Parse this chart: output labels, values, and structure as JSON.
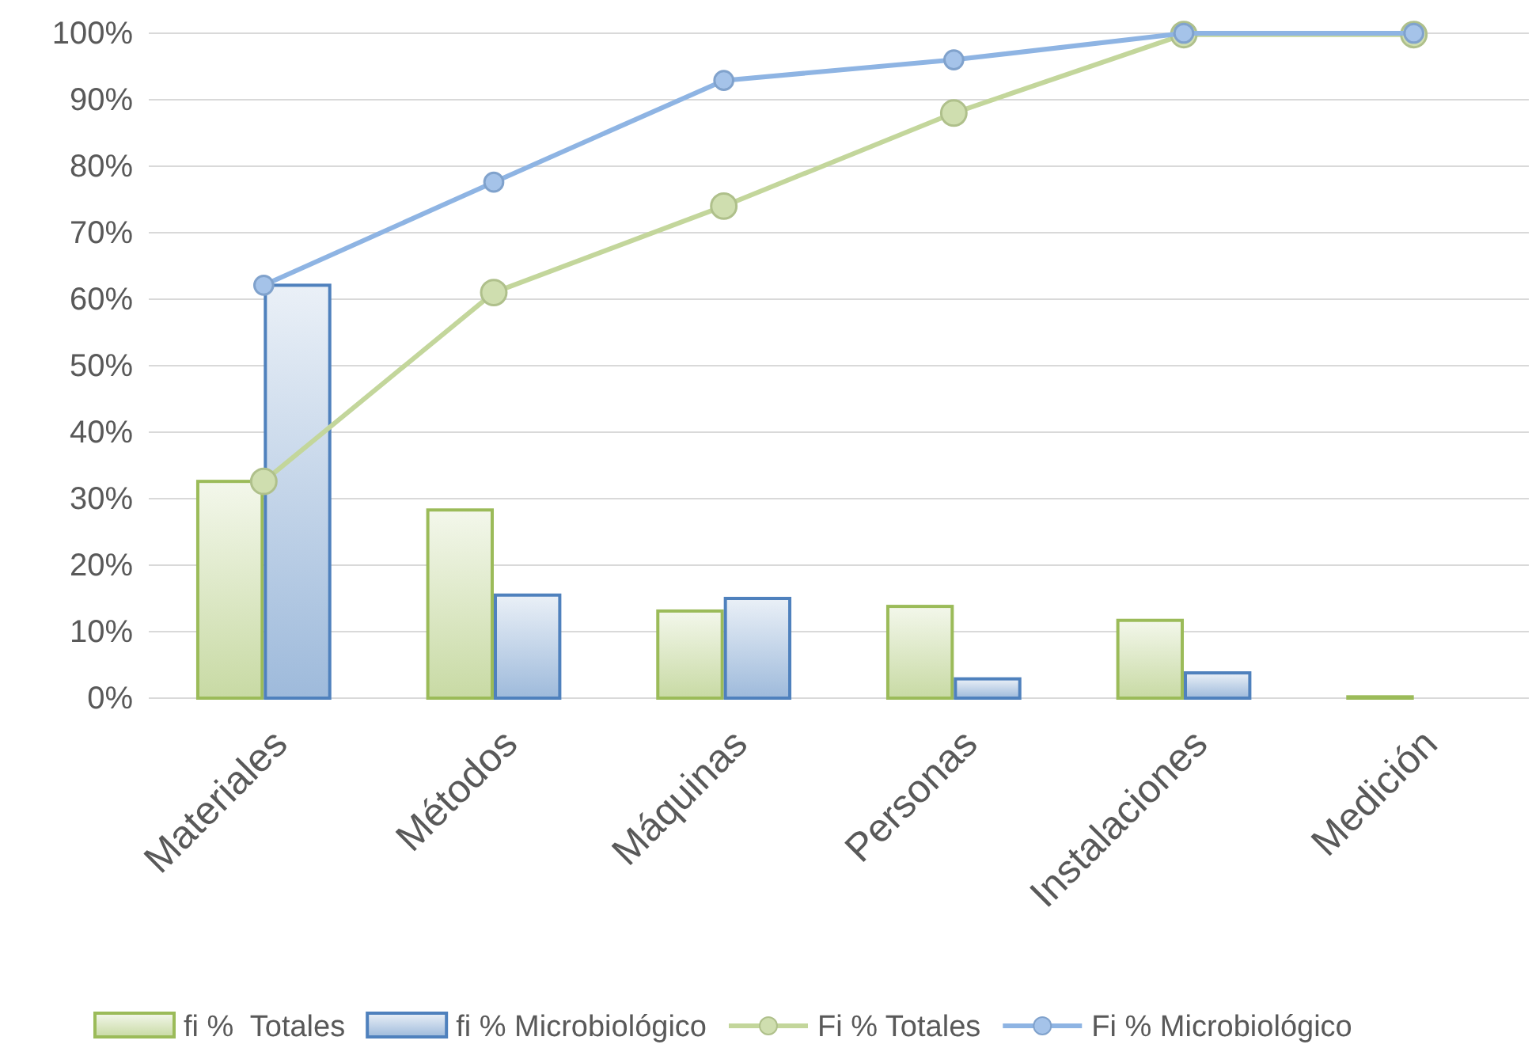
{
  "chart_data": {
    "type": "bar",
    "categories": [
      "Materiales",
      "Métodos",
      "Máquinas",
      "Personas",
      "Instalaciones",
      "Medición"
    ],
    "series": [
      {
        "name": "fi %  Totales",
        "color": "#9bbb59",
        "values": [
          32.6,
          28.3,
          13.1,
          13.8,
          11.7,
          0.2
        ]
      },
      {
        "name": "fi % Microbiológico",
        "color": "#4f81bd",
        "values": [
          62.1,
          15.5,
          15,
          2.9,
          3.8,
          0
        ]
      },
      {
        "name": "Fi % Totales",
        "type": "line",
        "color": "#c3d69b",
        "values": [
          32.6,
          61,
          74,
          88,
          99.8,
          99.8
        ]
      },
      {
        "name": "Fi % Microbiológico",
        "type": "line",
        "color": "#8eb4e3",
        "values": [
          62.1,
          77.6,
          92.9,
          96,
          100,
          100
        ]
      }
    ],
    "ylim": [
      0,
      100
    ],
    "yticks": [
      {
        "value": 0,
        "label": "0%"
      },
      {
        "value": 10,
        "label": "10%"
      },
      {
        "value": 20,
        "label": "20%"
      },
      {
        "value": 30,
        "label": "30%"
      },
      {
        "value": 40,
        "label": "40%"
      },
      {
        "value": 50,
        "label": "50%"
      },
      {
        "value": 60,
        "label": "60%"
      },
      {
        "value": 70,
        "label": "70%"
      },
      {
        "value": 80,
        "label": "80%"
      },
      {
        "value": 90,
        "label": "90%"
      },
      {
        "value": 100,
        "label": "100%"
      }
    ],
    "grid": "y",
    "legend": "bottom",
    "marker": "circle"
  }
}
